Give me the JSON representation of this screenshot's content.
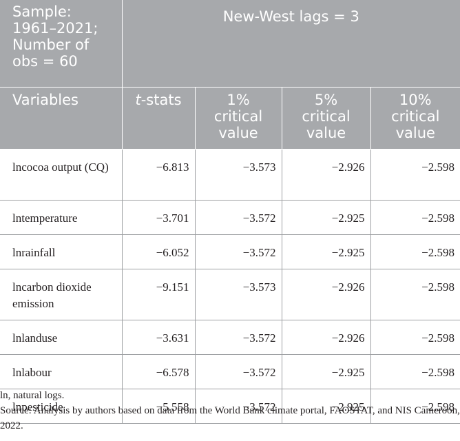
{
  "header": {
    "sample_lines": [
      "Sample:",
      "1961–2021;",
      "Number of",
      "obs = 60"
    ],
    "lags": "New-West lags = 3",
    "variables": "Variables",
    "tstats_italic": "t",
    "tstats_rest": "-stats",
    "col1_lines": [
      "1%",
      "critical",
      "value"
    ],
    "col5_lines": [
      "5%",
      "critical",
      "value"
    ],
    "col10_lines": [
      "10%",
      "critical",
      "value"
    ]
  },
  "rows": [
    {
      "variable": "lncocoa output (CQ)",
      "t": "−6.813",
      "cv1": "−3.573",
      "cv5": "−2.926",
      "cv10": "−2.598"
    },
    {
      "variable": "lntemperature",
      "t": "−3.701",
      "cv1": "−3.572",
      "cv5": "−2.925",
      "cv10": "−2.598"
    },
    {
      "variable": "lnrainfall",
      "t": "−6.052",
      "cv1": "−3.572",
      "cv5": "−2.925",
      "cv10": "−2.598"
    },
    {
      "variable": "lncarbon dioxide emission",
      "t": "−9.151",
      "cv1": "−3.573",
      "cv5": "−2.926",
      "cv10": "−2.598"
    },
    {
      "variable": "lnlanduse",
      "t": "−3.631",
      "cv1": "−3.572",
      "cv5": "−2.926",
      "cv10": "−2.598"
    },
    {
      "variable": "lnlabour",
      "t": "−6.578",
      "cv1": "−3.572",
      "cv5": "−2.925",
      "cv10": "−2.598"
    },
    {
      "variable": "lnpesticide",
      "t": "−5.558",
      "cv1": "−3.572",
      "cv5": "−2.925",
      "cv10": "−2.598"
    }
  ],
  "notes": {
    "abbrev": "ln, natural logs.",
    "source": "Source: Analysis by authors based on data from the World Bank climate portal, FAOSTAT, and NIS Cameroon, 2022."
  }
}
